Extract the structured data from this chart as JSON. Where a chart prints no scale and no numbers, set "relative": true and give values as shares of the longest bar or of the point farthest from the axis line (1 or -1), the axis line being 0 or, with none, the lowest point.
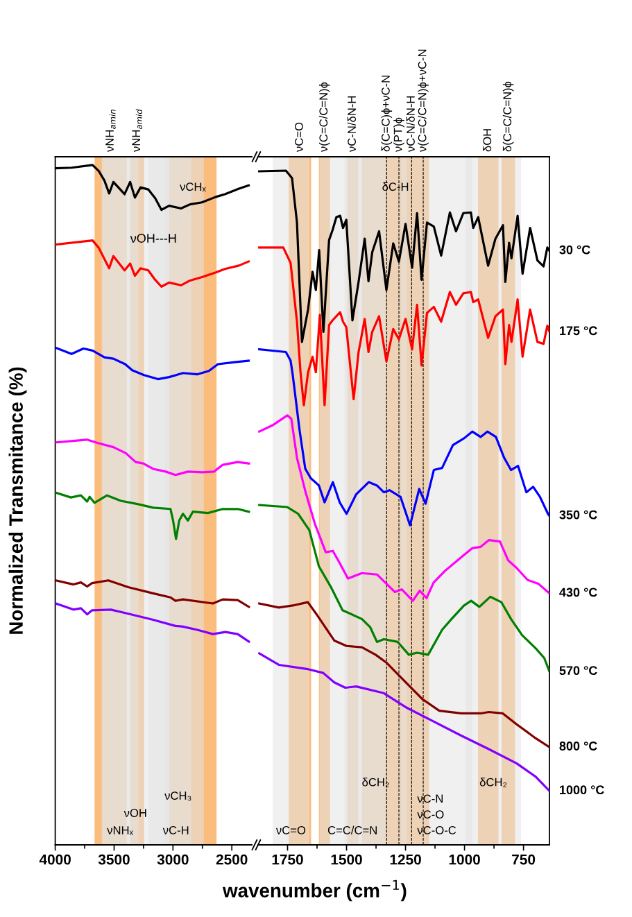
{
  "chart_data": [
    {
      "type": "line",
      "relative": true,
      "tick_labels": "x",
      "ylabel": "Normalized Transmitance (%)",
      "xlabel": "wavenumber (cm$^{−1}$)",
      "xlim": [
        4000,
        2330
      ],
      "xticks": [
        4000,
        {
          "value": 3750,
          "label": null
        },
        3500,
        {
          "value": 3250,
          "label": null
        },
        3000,
        {
          "value": 2750,
          "label": null
        },
        2500
      ],
      "series": [
        {
          "color": "#000000",
          "x": [
            3995,
            3861,
            3683,
            3630,
            3582,
            3542,
            3506,
            3453,
            3411,
            3364,
            3323,
            3275,
            3210,
            3151,
            3098,
            3033,
            2932,
            2855,
            2754,
            2636,
            2559,
            2440,
            2357
          ],
          "values": [
            0.995,
            0.996,
            1.0,
            0.991,
            0.977,
            0.958,
            0.975,
            0.965,
            0.957,
            0.975,
            0.952,
            0.967,
            0.964,
            0.951,
            0.934,
            0.94,
            0.936,
            0.942,
            0.945,
            0.953,
            0.957,
            0.965,
            0.97
          ]
        },
        {
          "color": "#ff0000",
          "x": [
            3995,
            3683,
            3630,
            3542,
            3506,
            3411,
            3364,
            3323,
            3275,
            3210,
            3151,
            3098,
            3033,
            2932,
            2855,
            2754,
            2636,
            2559,
            2440,
            2357
          ],
          "values": [
            0.883,
            0.889,
            0.878,
            0.848,
            0.866,
            0.845,
            0.855,
            0.837,
            0.848,
            0.845,
            0.831,
            0.821,
            0.827,
            0.823,
            0.83,
            0.835,
            0.842,
            0.847,
            0.852,
            0.858
          ]
        },
        {
          "color": "#0000ff",
          "x": [
            3995,
            3861,
            3761,
            3683,
            3582,
            3506,
            3406,
            3346,
            3246,
            3127,
            3033,
            2914,
            2795,
            2695,
            2618,
            2476,
            2357
          ],
          "values": [
            0.731,
            0.722,
            0.73,
            0.727,
            0.717,
            0.715,
            0.707,
            0.698,
            0.691,
            0.685,
            0.688,
            0.694,
            0.692,
            0.697,
            0.707,
            0.71,
            0.712
          ]
        },
        {
          "color": "#ff00ff",
          "x": [
            3995,
            3731,
            3636,
            3506,
            3400,
            3317,
            3252,
            3169,
            3062,
            2979,
            2873,
            2748,
            2651,
            2577,
            2452,
            2355
          ],
          "values": [
            0.592,
            0.596,
            0.591,
            0.585,
            0.576,
            0.563,
            0.561,
            0.553,
            0.549,
            0.544,
            0.549,
            0.548,
            0.549,
            0.559,
            0.563,
            0.561
          ]
        },
        {
          "color": "#008000",
          "x": [
            3995,
            3867,
            3782,
            3729,
            3708,
            3666,
            3560,
            3443,
            3295,
            3169,
            3021,
            2999,
            2974,
            2947,
            2915,
            2873,
            2831,
            2703,
            2577,
            2450,
            2355
          ],
          "values": [
            0.518,
            0.511,
            0.514,
            0.505,
            0.512,
            0.503,
            0.514,
            0.506,
            0.501,
            0.496,
            0.494,
            0.477,
            0.45,
            0.477,
            0.487,
            0.477,
            0.49,
            0.488,
            0.494,
            0.494,
            0.49
          ]
        },
        {
          "color": "#800000",
          "x": [
            3995,
            3845,
            3782,
            3729,
            3687,
            3549,
            3380,
            3169,
            3021,
            2979,
            2915,
            2661,
            2577,
            2450,
            2355
          ],
          "values": [
            0.389,
            0.383,
            0.386,
            0.38,
            0.385,
            0.389,
            0.379,
            0.37,
            0.364,
            0.359,
            0.361,
            0.355,
            0.361,
            0.36,
            0.35
          ]
        },
        {
          "color": "#8000ff",
          "x": [
            3995,
            3845,
            3782,
            3729,
            3687,
            3528,
            3380,
            3169,
            2979,
            2915,
            2788,
            2661,
            2555,
            2450,
            2355
          ],
          "values": [
            0.355,
            0.346,
            0.348,
            0.339,
            0.345,
            0.346,
            0.34,
            0.331,
            0.322,
            0.321,
            0.316,
            0.31,
            0.313,
            0.31,
            0.299
          ]
        }
      ],
      "bands": [
        {
          "axis": "x",
          "from": 3606,
          "to": 3292,
          "label": "νNHₓ",
          "color": "#e3e3e3"
        },
        {
          "axis": "x",
          "from": 3210,
          "to": 2738,
          "label": "νC-H",
          "color": "#e3e3e3"
        },
        {
          "axis": "x",
          "from": 3600,
          "to": 3037,
          "label": "νOH",
          "color": "#e3e3e3"
        },
        {
          "axis": "x",
          "from": 3068,
          "to": 2845,
          "label": "νCH₃",
          "color": "#e3e3e3"
        },
        {
          "axis": "x",
          "from": 3666,
          "to": 3393,
          "label": "νNH$_{amin}$",
          "color": "#fbbd7e"
        },
        {
          "axis": "x",
          "from": 3364,
          "to": 3245,
          "label": "νNH$_{amid}$",
          "color": "#fbbd7e"
        },
        {
          "axis": "x",
          "from": 3032,
          "to": 2630,
          "label": "νCHₓ",
          "color": "#fbbd7e"
        }
      ],
      "annotations": [
        "νOH---H"
      ]
    },
    {
      "type": "line",
      "relative": true,
      "tick_labels": "x",
      "xlim": [
        1875,
        640
      ],
      "xticks": [
        {
          "value": 1625,
          "label": null
        },
        1750,
        1500,
        {
          "value": 1375,
          "label": null
        },
        1250,
        {
          "value": 1125,
          "label": null
        },
        1000,
        {
          "value": 875,
          "label": null
        },
        750
      ],
      "series": [
        {
          "name": "30 °C",
          "color": "#000000",
          "x": [
            1870,
            1757,
            1731,
            1710,
            1689,
            1663,
            1644,
            1630,
            1616,
            1598,
            1574,
            1559,
            1543,
            1527,
            1515,
            1501,
            1475,
            1449,
            1423,
            1407,
            1391,
            1362,
            1331,
            1302,
            1278,
            1250,
            1222,
            1201,
            1182,
            1159,
            1130,
            1099,
            1062,
            1036,
            1005,
            973,
            963,
            942,
            900,
            869,
            837,
            827,
            811,
            801,
            775,
            754,
            722,
            691,
            665,
            649,
            640
          ],
          "values": [
            0.999,
            1.0,
            0.989,
            0.923,
            0.746,
            0.794,
            0.85,
            0.823,
            0.882,
            0.761,
            0.897,
            0.912,
            0.931,
            0.933,
            0.915,
            0.927,
            0.778,
            0.835,
            0.899,
            0.836,
            0.879,
            0.91,
            0.823,
            0.892,
            0.865,
            0.921,
            0.856,
            0.937,
            0.838,
            0.923,
            0.917,
            0.874,
            0.938,
            0.91,
            0.937,
            0.938,
            0.915,
            0.931,
            0.859,
            0.899,
            0.919,
            0.835,
            0.893,
            0.87,
            0.933,
            0.847,
            0.915,
            0.867,
            0.858,
            0.886,
            0.881
          ]
        },
        {
          "name": "175 °C",
          "color": "#ff0000",
          "x": [
            1870,
            1768,
            1737,
            1710,
            1695,
            1681,
            1663,
            1644,
            1630,
            1613,
            1593,
            1574,
            1559,
            1543,
            1527,
            1515,
            1501,
            1470,
            1449,
            1423,
            1407,
            1391,
            1362,
            1331,
            1302,
            1278,
            1250,
            1222,
            1201,
            1182,
            1159,
            1130,
            1099,
            1062,
            1036,
            1005,
            973,
            963,
            942,
            900,
            869,
            837,
            827,
            811,
            801,
            775,
            754,
            722,
            691,
            665,
            649,
            640
          ],
          "values": [
            0.886,
            0.886,
            0.863,
            0.776,
            0.701,
            0.652,
            0.701,
            0.724,
            0.701,
            0.786,
            0.652,
            0.771,
            0.778,
            0.784,
            0.79,
            0.776,
            0.768,
            0.661,
            0.731,
            0.78,
            0.731,
            0.761,
            0.784,
            0.717,
            0.765,
            0.75,
            0.78,
            0.735,
            0.801,
            0.711,
            0.789,
            0.798,
            0.776,
            0.82,
            0.801,
            0.818,
            0.82,
            0.805,
            0.809,
            0.752,
            0.784,
            0.794,
            0.713,
            0.771,
            0.746,
            0.809,
            0.724,
            0.794,
            0.746,
            0.743,
            0.77,
            0.761
          ]
        },
        {
          "name": "350 °C",
          "color": "#0000ff",
          "x": [
            1870,
            1757,
            1737,
            1728,
            1699,
            1675,
            1652,
            1617,
            1593,
            1558,
            1529,
            1500,
            1459,
            1406,
            1371,
            1342,
            1318,
            1271,
            1231,
            1192,
            1165,
            1130,
            1095,
            1049,
            1002,
            967,
            932,
            903,
            867,
            832,
            803,
            773,
            738,
            709,
            680,
            645,
            640
          ],
          "values": [
            0.735,
            0.731,
            0.718,
            0.697,
            0.615,
            0.558,
            0.544,
            0.533,
            0.508,
            0.538,
            0.508,
            0.491,
            0.52,
            0.538,
            0.533,
            0.523,
            0.526,
            0.516,
            0.474,
            0.528,
            0.506,
            0.556,
            0.559,
            0.593,
            0.603,
            0.613,
            0.605,
            0.613,
            0.605,
            0.574,
            0.556,
            0.562,
            0.523,
            0.531,
            0.516,
            0.49,
            0.488
          ]
        },
        {
          "name": "430 °C",
          "color": "#ff00ff",
          "x": [
            1870,
            1810,
            1751,
            1734,
            1710,
            1675,
            1634,
            1588,
            1558,
            1529,
            1494,
            1435,
            1371,
            1324,
            1295,
            1266,
            1219,
            1190,
            1161,
            1131,
            1084,
            1002,
            967,
            932,
            897,
            850,
            815,
            780,
            733,
            686,
            640
          ],
          "values": [
            0.613,
            0.623,
            0.637,
            0.632,
            0.574,
            0.525,
            0.476,
            0.434,
            0.436,
            0.418,
            0.395,
            0.403,
            0.401,
            0.385,
            0.375,
            0.379,
            0.362,
            0.377,
            0.366,
            0.389,
            0.406,
            0.43,
            0.44,
            0.442,
            0.452,
            0.45,
            0.422,
            0.411,
            0.393,
            0.387,
            0.373
          ]
        },
        {
          "name": "570 °C",
          "color": "#008000",
          "x": [
            1870,
            1751,
            1705,
            1658,
            1617,
            1564,
            1517,
            1435,
            1400,
            1371,
            1342,
            1283,
            1236,
            1201,
            1154,
            1095,
            1055,
            1002,
            972,
            937,
            891,
            844,
            803,
            756,
            697,
            662,
            640
          ],
          "values": [
            0.504,
            0.501,
            0.491,
            0.467,
            0.413,
            0.381,
            0.348,
            0.335,
            0.323,
            0.301,
            0.305,
            0.301,
            0.282,
            0.285,
            0.282,
            0.319,
            0.335,
            0.355,
            0.362,
            0.353,
            0.368,
            0.36,
            0.335,
            0.311,
            0.291,
            0.277,
            0.257
          ]
        },
        {
          "name": "800 °C",
          "color": "#800000",
          "x": [
            1870,
            1787,
            1728,
            1664,
            1623,
            1552,
            1500,
            1435,
            1377,
            1330,
            1260,
            1178,
            1107,
            1014,
            932,
            897,
            838,
            780,
            698,
            640
          ],
          "values": [
            0.358,
            0.352,
            0.355,
            0.36,
            0.34,
            0.303,
            0.295,
            0.293,
            0.282,
            0.27,
            0.245,
            0.216,
            0.199,
            0.195,
            0.195,
            0.197,
            0.195,
            0.179,
            0.158,
            0.145
          ]
        },
        {
          "name": "1000 °C",
          "color": "#8000ff",
          "x": [
            1870,
            1787,
            1669,
            1599,
            1552,
            1505,
            1459,
            1342,
            1248,
            1131,
            1014,
            897,
            780,
            698,
            640
          ],
          "values": [
            0.284,
            0.267,
            0.261,
            0.255,
            0.241,
            0.233,
            0.235,
            0.225,
            0.204,
            0.183,
            0.162,
            0.142,
            0.121,
            0.101,
            0.08
          ]
        }
      ],
      "bands": [
        {
          "axis": "x",
          "from": 1813,
          "to": 1658,
          "label": "νC=O",
          "color": "#e3e3e3"
        },
        {
          "axis": "x",
          "from": 1614,
          "to": 1335,
          "label": "C=C/C=N",
          "color": "#e3e3e3"
        },
        {
          "axis": "x",
          "from": 1268,
          "to": 967,
          "label": "νC-N\nνC-O\nνC-O-C",
          "color": "#e3e3e3"
        },
        {
          "axis": "x",
          "from": 1508,
          "to": 1245,
          "label": "δCH₂",
          "color": "#e3e3e3"
        },
        {
          "axis": "x",
          "from": 996,
          "to": 760,
          "label": "δCH₂",
          "color": "#e3e3e3"
        },
        {
          "axis": "x",
          "from": 1745,
          "to": 1650,
          "label": "νC=O",
          "color": "#fbbd7e"
        },
        {
          "axis": "x",
          "from": 1617,
          "to": 1570,
          "label": "ν(C=C/C=N)ϕ",
          "color": "#fbbd7e"
        },
        {
          "axis": "x",
          "from": 1497,
          "to": 1450,
          "label": "νC-N/δN-H",
          "color": "#fbbd7e"
        },
        {
          "axis": "x",
          "from": 1435,
          "to": 1150,
          "label": "δC-H",
          "color": "#fbbd7e"
        },
        {
          "axis": "x",
          "from": 943,
          "to": 856,
          "label": "δOH",
          "color": "#fbbd7e"
        },
        {
          "axis": "x",
          "from": 843,
          "to": 786,
          "label": "δ(C=C/C=N)ϕ",
          "color": "#fbbd7e"
        }
      ],
      "ref_lines": [
        {
          "axis": "x",
          "value": 1330,
          "label": "δ(C=C)ϕ+νC-N",
          "color": "#000000",
          "line_style": "dashed"
        },
        {
          "axis": "x",
          "value": 1278,
          "label": "ν(PT)ϕ",
          "color": "#000000",
          "line_style": "dashed"
        },
        {
          "axis": "x",
          "value": 1224,
          "label": "νC-N/δN-H",
          "color": "#000000",
          "line_style": "dashed"
        },
        {
          "axis": "x",
          "value": 1175,
          "label": "ν(C=C/C=N)ϕ+νC-N",
          "color": "#000000",
          "line_style": "dashed"
        }
      ]
    }
  ]
}
